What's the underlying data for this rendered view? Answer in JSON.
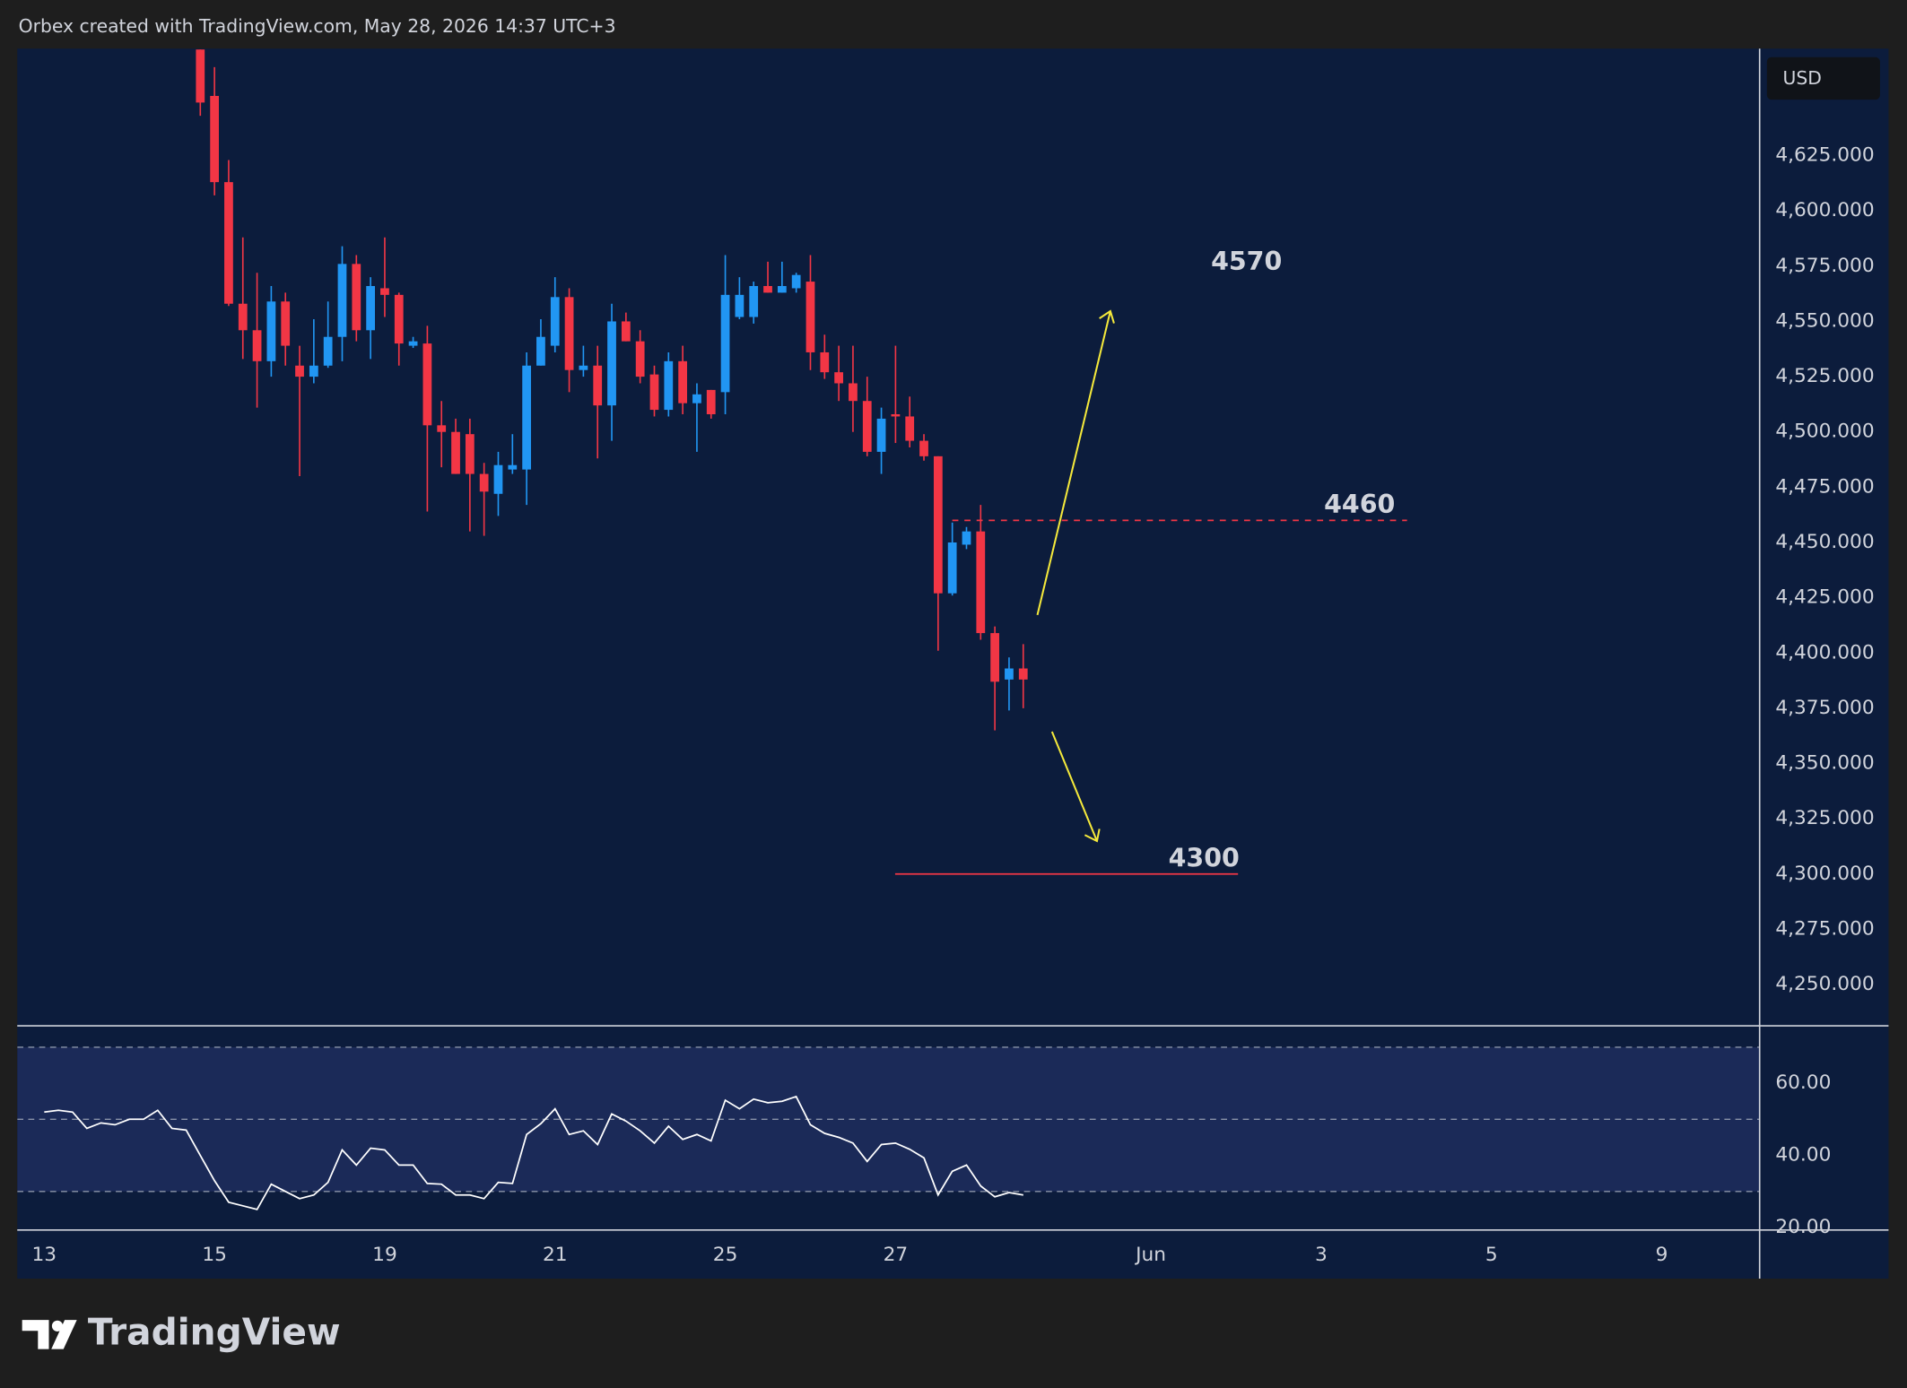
{
  "header": "Orbex created with TradingView.com, May 28, 2026 14:37 UTC+3",
  "brand": "TradingView",
  "chart_data": [
    {
      "type": "candlestick",
      "currency": "USD",
      "up_color": "#2196f3",
      "down_color": "#f23645",
      "xlim": [
        -1.9,
        120.9
      ],
      "xticks": [
        {
          "value": 0,
          "label": "13"
        },
        {
          "value": 12,
          "label": "15"
        },
        {
          "value": 24,
          "label": "19"
        },
        {
          "value": 36,
          "label": "21"
        },
        {
          "value": 48,
          "label": "25"
        },
        {
          "value": 60,
          "label": "27"
        },
        {
          "value": 78,
          "label": "Jun"
        },
        {
          "value": 90,
          "label": "3"
        },
        {
          "value": 102,
          "label": "5"
        },
        {
          "value": 114,
          "label": "9"
        }
      ],
      "ylim": [
        4231.9,
        4673.4
      ],
      "yticks": [
        {
          "value": 4250,
          "label": "4,250.000"
        },
        {
          "value": 4275,
          "label": "4,275.000"
        },
        {
          "value": 4300,
          "label": "4,300.000"
        },
        {
          "value": 4325,
          "label": "4,325.000"
        },
        {
          "value": 4350,
          "label": "4,350.000"
        },
        {
          "value": 4375,
          "label": "4,375.000"
        },
        {
          "value": 4400,
          "label": "4,400.000"
        },
        {
          "value": 4425,
          "label": "4,425.000"
        },
        {
          "value": 4450,
          "label": "4,450.000"
        },
        {
          "value": 4475,
          "label": "4,475.000"
        },
        {
          "value": 4500,
          "label": "4,500.000"
        },
        {
          "value": 4525,
          "label": "4,525.000"
        },
        {
          "value": 4550,
          "label": "4,550.000"
        },
        {
          "value": 4575,
          "label": "4,575.000"
        },
        {
          "value": 4600,
          "label": "4,600.000"
        },
        {
          "value": 4625,
          "label": "4,625.000"
        }
      ],
      "candles": {
        "x": [
          11,
          12,
          13,
          14,
          15,
          16,
          17,
          18,
          19,
          20,
          21,
          22,
          23,
          24,
          25,
          26,
          27,
          28,
          29,
          30,
          31,
          32,
          33,
          34,
          35,
          36,
          37,
          38,
          39,
          40,
          41,
          42,
          43,
          44,
          45,
          46,
          47,
          48,
          49,
          50,
          51,
          52,
          53,
          54,
          55,
          56,
          57,
          58,
          59,
          60,
          61,
          62,
          63,
          64,
          65,
          66,
          67,
          68,
          69
        ],
        "open": [
          4673,
          4652,
          4613,
          4558,
          4546,
          4532,
          4559,
          4530,
          4525,
          4530,
          4543,
          4576,
          4546,
          4565,
          4562,
          4539,
          4540,
          4503,
          4500,
          4499,
          4481,
          4472,
          4483,
          4483,
          4530,
          4539,
          4561,
          4528,
          4530,
          4512,
          4550,
          4541,
          4526,
          4510,
          4532,
          4513,
          4519,
          4518,
          4552,
          4552,
          4566,
          4563,
          4565,
          4568,
          4536,
          4527,
          4522,
          4514,
          4491,
          4508,
          4507,
          4496,
          4489,
          4427,
          4449,
          4455,
          4409,
          4388,
          4393
        ],
        "high": [
          4673,
          4665,
          4623,
          4588,
          4572,
          4566,
          4563,
          4539,
          4551,
          4559,
          4584,
          4580,
          4570,
          4588,
          4563,
          4543,
          4548,
          4514,
          4506,
          4506,
          4486,
          4491,
          4499,
          4536,
          4551,
          4570,
          4565,
          4539,
          4539,
          4558,
          4554,
          4546,
          4530,
          4536,
          4539,
          4522,
          4519,
          4580,
          4570,
          4568,
          4577,
          4577,
          4572,
          4580,
          4544,
          4539,
          4539,
          4525,
          4511,
          4539,
          4516,
          4499,
          4489,
          4459,
          4457,
          4467,
          4412,
          4398,
          4404
        ],
        "low": [
          4643,
          4607,
          4557,
          4533,
          4511,
          4525,
          4530,
          4480,
          4522,
          4529,
          4532,
          4541,
          4533,
          4552,
          4530,
          4538,
          4464,
          4484,
          4481,
          4455,
          4453,
          4462,
          4481,
          4467,
          4530,
          4536,
          4518,
          4525,
          4488,
          4496,
          4541,
          4522,
          4507,
          4507,
          4508,
          4491,
          4506,
          4508,
          4551,
          4549,
          4563,
          4563,
          4563,
          4528,
          4524,
          4514,
          4500,
          4489,
          4481,
          4495,
          4493,
          4487,
          4401,
          4426,
          4447,
          4406,
          4365,
          4374,
          4375
        ],
        "close": [
          4649,
          4613,
          4558,
          4546,
          4532,
          4559,
          4539,
          4525,
          4530,
          4543,
          4576,
          4546,
          4566,
          4562,
          4540,
          4541,
          4503,
          4500,
          4481,
          4481,
          4473,
          4485,
          4485,
          4530,
          4543,
          4561,
          4528,
          4530,
          4512,
          4550,
          4541,
          4525,
          4510,
          4532,
          4513,
          4517,
          4508,
          4562,
          4562,
          4566,
          4563,
          4566,
          4571,
          4536,
          4527,
          4522,
          4514,
          4491,
          4506,
          4507,
          4496,
          4489,
          4427,
          4450,
          4455,
          4409,
          4387,
          4393,
          4388
        ]
      },
      "annotations": [
        {
          "value": 4570
        },
        {
          "value": 4460,
          "line": "dashed",
          "color": "#f23645"
        },
        {
          "value": 4300,
          "line": "solid",
          "color": "#f23645"
        }
      ]
    },
    {
      "type": "line",
      "color": "#ffffff",
      "band_color": "#1b2a58",
      "xlim": [
        -1.9,
        120.9
      ],
      "ylim": [
        19.3,
        75.6
      ],
      "yticks": [
        {
          "value": 20,
          "label": "20.00"
        },
        {
          "value": 40,
          "label": "40.00"
        },
        {
          "value": 60,
          "label": "60.00"
        }
      ],
      "levels": [
        70,
        50,
        30
      ],
      "x": [
        0,
        1,
        2,
        3,
        4,
        5,
        6,
        7,
        8,
        9,
        10,
        11,
        12,
        13,
        14,
        15,
        16,
        17,
        18,
        19,
        20,
        21,
        22,
        23,
        24,
        25,
        26,
        27,
        28,
        29,
        30,
        31,
        32,
        33,
        34,
        35,
        36,
        37,
        38,
        39,
        40,
        41,
        42,
        43,
        44,
        45,
        46,
        47,
        48,
        49,
        50,
        51,
        52,
        53,
        54,
        55,
        56,
        57,
        58,
        59,
        60,
        61,
        62,
        63,
        64,
        65,
        66,
        67,
        68,
        69
      ],
      "values": [
        52,
        52.5,
        52,
        47.5,
        49,
        48.5,
        50,
        50,
        52.5,
        47.5,
        47,
        40,
        33,
        27,
        26,
        25,
        32,
        30,
        28,
        29,
        32.5,
        41.5,
        37.3,
        42,
        41.5,
        37.3,
        37.3,
        32.2,
        32,
        29,
        29,
        28,
        32.5,
        32.2,
        45.8,
        48.8,
        52.9,
        45.8,
        46.8,
        43,
        51.5,
        49.5,
        46.8,
        43.4,
        48.1,
        44.4,
        45.8,
        44,
        55.3,
        52.9,
        55.6,
        54.6,
        55,
        56.3,
        48.5,
        46.1,
        45,
        43.4,
        38.3,
        43,
        43.4,
        41.7,
        39.3,
        29,
        35.6,
        37.3,
        31.5,
        28.5,
        29.7,
        29
      ]
    }
  ]
}
